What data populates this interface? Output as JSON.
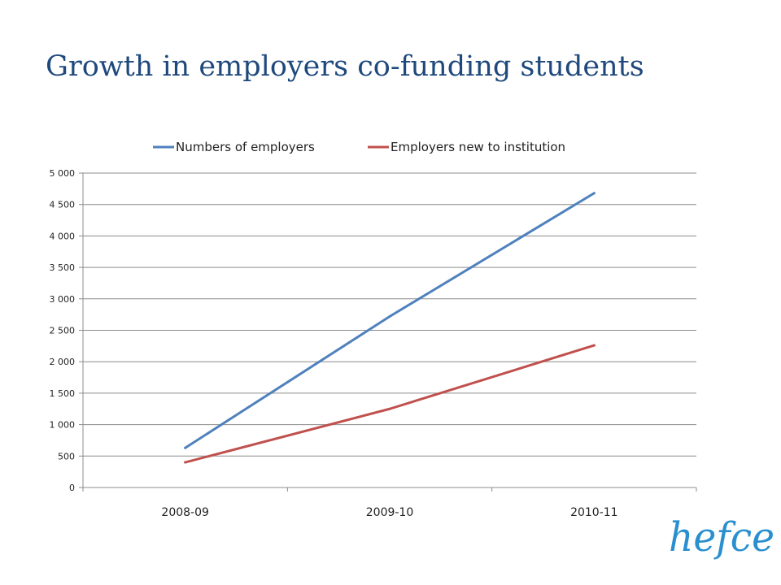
{
  "slide": {
    "title": "Growth in employers co-funding students"
  },
  "logo": {
    "text": "hefce",
    "color": "#2a8fce"
  },
  "chart_data": {
    "type": "line",
    "categories": [
      "2008-09",
      "2009-10",
      "2010-11"
    ],
    "series": [
      {
        "name": "Numbers of employers",
        "values": [
          630,
          2720,
          4680
        ],
        "color": "#4f81bd"
      },
      {
        "name": "Employers new to institution",
        "values": [
          400,
          1250,
          2260
        ],
        "color": "#c0504d"
      }
    ],
    "y_ticks": [
      0,
      500,
      1000,
      1500,
      2000,
      2500,
      3000,
      3500,
      4000,
      4500,
      5000
    ],
    "y_tick_labels": [
      "0",
      "500",
      "1 000",
      "1 500",
      "2 000",
      "2 500",
      "3 000",
      "3 500",
      "4 000",
      "4 500",
      "5 000"
    ],
    "ylim": [
      0,
      5000
    ],
    "grid": true,
    "legend_position": "top"
  }
}
